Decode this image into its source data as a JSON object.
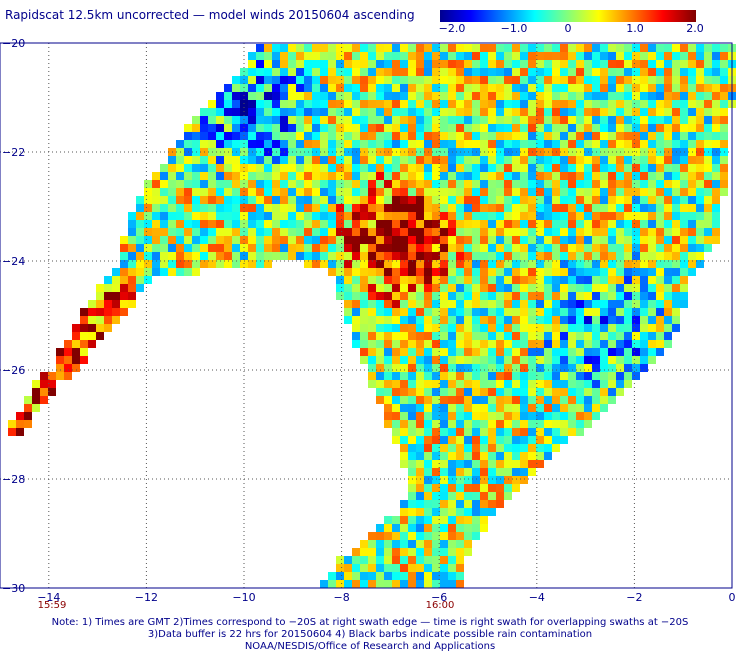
{
  "title": "Rapidscat 12.5km uncorrected — model winds 20150604 ascending",
  "colorbar": {
    "ticks": [
      "−2.0",
      "−1.0",
      "0",
      "1.0",
      "2.0"
    ],
    "tick_values": [
      -2.0,
      -1.0,
      0,
      1.0,
      2.0
    ],
    "range": [
      -2.0,
      2.0
    ],
    "colors": [
      "#00008f",
      "#0000ff",
      "#00ffff",
      "#ffff00",
      "#ff0000",
      "#800000"
    ]
  },
  "chart_data": {
    "type": "heatmap",
    "title": "Rapidscat 12.5km uncorrected — model winds 20150604 ascending",
    "x_ticks": [
      -14,
      -12,
      -10,
      -8,
      -6,
      -4,
      -2,
      0
    ],
    "y_ticks": [
      -20,
      -22,
      -24,
      -26,
      -28,
      -30
    ],
    "xlim": [
      -15,
      0
    ],
    "ylim": [
      -30,
      -20
    ],
    "value_range": [
      -2.0,
      2.0
    ],
    "grid": true
  },
  "axes": {
    "x_labels": [
      "−14",
      "−12",
      "−10",
      "−8",
      "−6",
      "−4",
      "−2",
      "0"
    ],
    "y_labels": [
      "−20",
      "−22",
      "−24",
      "−26",
      "−28",
      "−30"
    ]
  },
  "time_labels": [
    "15:59",
    "16:00"
  ],
  "notes": [
    "Note: 1) Times are GMT 2)Times correspond to −20S at right swath edge — time is right swath for overlapping swaths at −20S",
    "3)Data buffer is 22 hrs for 20150604 4) Black barbs indicate possible rain contamination",
    "NOAA/NESDIS/Office of Research and Applications"
  ]
}
